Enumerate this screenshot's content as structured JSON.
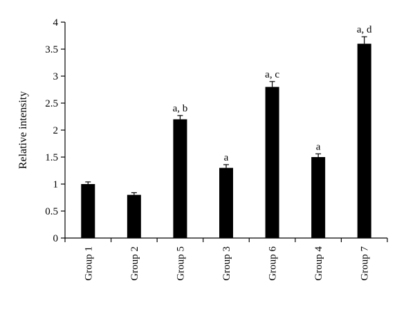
{
  "chart_data": {
    "type": "bar",
    "title": "",
    "xlabel": "",
    "ylabel": "Relative intensity",
    "ylim": [
      0,
      4
    ],
    "yticks": [
      "0",
      "0.5",
      "1",
      "1.5",
      "2",
      "2.5",
      "3",
      "3.5",
      "4"
    ],
    "grid": false,
    "legend": "none",
    "bar_color": "#000000",
    "categories": [
      "Group 1",
      "Group 2",
      "Group 5",
      "Group 3",
      "Group 6",
      "Group 4",
      "Group 7"
    ],
    "values": [
      1.0,
      0.8,
      2.2,
      1.3,
      2.8,
      1.5,
      3.6
    ],
    "errors": [
      0.04,
      0.04,
      0.07,
      0.06,
      0.1,
      0.06,
      0.13
    ],
    "annotations": [
      "",
      "",
      "a, b",
      "a",
      "a, c",
      "a",
      "a, d"
    ]
  }
}
